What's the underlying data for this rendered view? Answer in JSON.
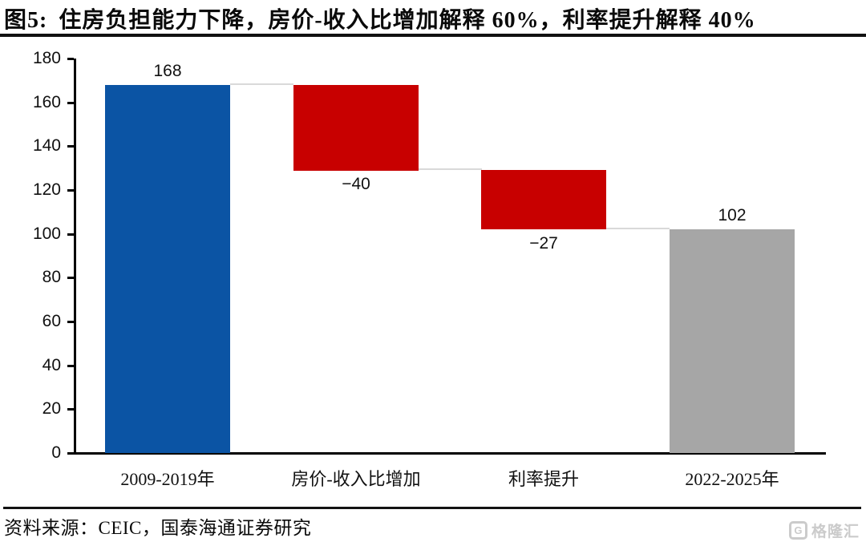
{
  "title": {
    "prefix": "图5:",
    "text": "住房负担能力下降，房价-收入比增加解释 60%，利率提升解释 40%"
  },
  "source": {
    "label": "资料来源：CEIC，国泰海通证券研究"
  },
  "watermark": {
    "icon": "G",
    "text": "格隆汇",
    "color": "#cbcbcb"
  },
  "chart_data": {
    "type": "bar",
    "subtype": "waterfall",
    "title": "住房负担能力下降，房价-收入比增加解释 60%，利率提升解释 40%",
    "categories": [
      "2009-2019年",
      "房价-收入比增加",
      "利率提升",
      "2022-2025年"
    ],
    "values": [
      168,
      -40,
      -27,
      102
    ],
    "labels": [
      "168",
      "−40",
      "−27",
      "102"
    ],
    "label_positions": [
      "above",
      "below",
      "below",
      "above"
    ],
    "cumulative_levels": [
      [
        0,
        168
      ],
      [
        129,
        168
      ],
      [
        102,
        129
      ],
      [
        0,
        102
      ]
    ],
    "connector_levels": [
      168,
      129,
      102
    ],
    "bar_colors": [
      "#0b54a4",
      "#c80000",
      "#c80000",
      "#a6a6a6"
    ],
    "connector_color": "#d9d9d9",
    "axis_color": "#000000",
    "xlabel": "",
    "ylabel": "",
    "ylim": [
      0,
      180
    ],
    "yticks": [
      0,
      20,
      40,
      60,
      80,
      100,
      120,
      140,
      160,
      180
    ],
    "grid": false,
    "legend": false
  }
}
